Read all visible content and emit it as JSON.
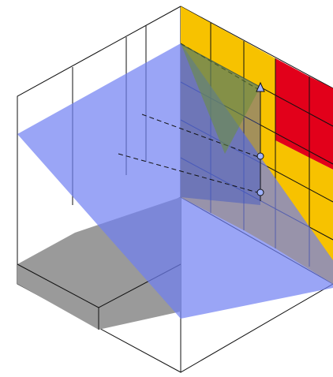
{
  "diagram": {
    "kind": "isometric-box-with-cutting-plane",
    "colors": {
      "background": "#ffffff",
      "outline": "#111111",
      "plane": "#6f7ff2",
      "gray_face": "#9a9a9a",
      "yellow_cells": "#f7c200",
      "red_cells": "#e2001a",
      "marker_fill": "#9fb2ff"
    },
    "grid": {
      "columns": 5,
      "rows": 8,
      "cells_colored": [
        "yellow",
        "yellow",
        "yellow",
        "red",
        "red"
      ]
    },
    "markers": [
      "arrow-head",
      "dot",
      "dot"
    ],
    "icons": [
      "arrow-up-icon",
      "dot-marker-icon"
    ]
  }
}
